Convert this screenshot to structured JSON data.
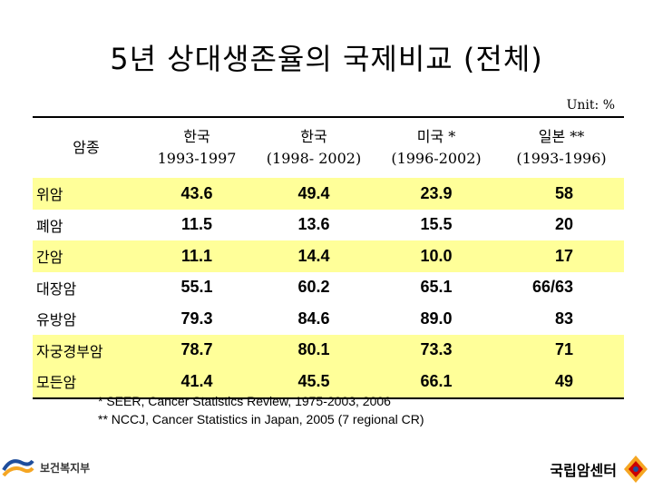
{
  "title": "5년 상대생존율의 국제비교 (전체)",
  "unit": "Unit: %",
  "header": {
    "cancer_type": "암종",
    "col1_line1": "한국",
    "col1_line2": "1993-1997",
    "col2_line1": "한국",
    "col2_line2": "(1998- 2002)",
    "col3_line1": "미국 *",
    "col3_line2": "(1996-2002)",
    "col4_line1": "일본 **",
    "col4_line2": "(1993-1996)"
  },
  "rows": [
    {
      "name": "위암",
      "v1": "43.6",
      "v2": "49.4",
      "v3": "23.9",
      "v4": "58"
    },
    {
      "name": "폐암",
      "v1": "11.5",
      "v2": "13.6",
      "v3": "15.5",
      "v4": "20"
    },
    {
      "name": "간암",
      "v1": "11.1",
      "v2": "14.4",
      "v3": "10.0",
      "v4": "17"
    },
    {
      "name": "대장암",
      "v1": "55.1",
      "v2": "60.2",
      "v3": "65.1",
      "v4": "66/63"
    },
    {
      "name": "유방암",
      "v1": "79.3",
      "v2": "84.6",
      "v3": "89.0",
      "v4": "83"
    },
    {
      "name": "자궁경부암",
      "v1": "78.7",
      "v2": "80.1",
      "v3": "73.3",
      "v4": "71"
    },
    {
      "name": "모든암",
      "v1": "41.4",
      "v2": "45.5",
      "v3": "66.1",
      "v4": "49"
    }
  ],
  "notes": {
    "note1": "* SEER, Cancer Statistics Review, 1975-2003, 2006",
    "note2": "** NCCJ, Cancer Statistics in Japan, 2005 (7 regional CR)"
  },
  "logos": {
    "left_text": "보건복지부",
    "right_text": "국립암센터"
  },
  "colors": {
    "highlight_row": "#ffff99",
    "accent_red": "#cc0000",
    "accent_orange": "#f5a623",
    "accent_blue": "#1f4e9c"
  }
}
